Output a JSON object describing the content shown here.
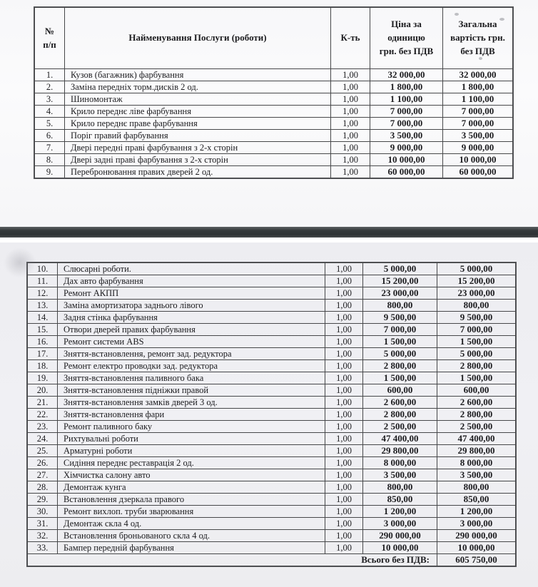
{
  "colors": {
    "page_top_bg": "#f9f9fb",
    "page_bottom_bg": "#efeff3",
    "divider": "#33383a",
    "table_border": "#47484a",
    "text": "#1c1c1f"
  },
  "header": {
    "col_num": "№\nп/п",
    "col_name": "Найменування Послуги (роботи)",
    "col_qty": "К-ть",
    "col_price": "Ціна за\nодиницю\nгрн. без ПДВ",
    "col_total": "Загальна\nвартість грн.\nбез ПДВ"
  },
  "table1": {
    "rows": [
      {
        "num": "1.",
        "name": "Кузов (багажник) фарбування",
        "qty": "1,00",
        "price": "32 000,00",
        "total": "32 000,00"
      },
      {
        "num": "2.",
        "name": "Заміна передніх торм.дисків 2 од.",
        "qty": "1,00",
        "price": "1 800,00",
        "total": "1 800,00"
      },
      {
        "num": "3.",
        "name": "Шиномонтаж",
        "qty": "1,00",
        "price": "1 100,00",
        "total": "1 100,00"
      },
      {
        "num": "4.",
        "name": "Крило переднє ліве фарбування",
        "qty": "1,00",
        "price": "7 000,00",
        "total": "7 000,00"
      },
      {
        "num": "5.",
        "name": "Крило переднє праве фарбування",
        "qty": "1,00",
        "price": "7 000,00",
        "total": "7 000,00"
      },
      {
        "num": "6.",
        "name": "Поріг правий фарбування",
        "qty": "1,00",
        "price": "3 500,00",
        "total": "3 500,00"
      },
      {
        "num": "7.",
        "name": "Двері передні праві фарбування з 2-х сторін",
        "qty": "1,00",
        "price": "9 000,00",
        "total": "9 000,00"
      },
      {
        "num": "8.",
        "name": "Двері задні праві фарбування з 2-х сторін",
        "qty": "1,00",
        "price": "10 000,00",
        "total": "10 000,00"
      },
      {
        "num": "9.",
        "name": "Перебронювання правих дверей 2 од.",
        "qty": "1,00",
        "price": "60 000,00",
        "total": "60 000,00"
      }
    ]
  },
  "table2": {
    "rows": [
      {
        "num": "10.",
        "name": "Слюсарні роботи.",
        "qty": "1,00",
        "price": "5 000,00",
        "total": "5 000,00"
      },
      {
        "num": "11.",
        "name": "Дах авто фарбування",
        "qty": "1,00",
        "price": "15 200,00",
        "total": "15 200,00"
      },
      {
        "num": "12.",
        "name": "Ремонт АКПП",
        "qty": "1,00",
        "price": "23 000,00",
        "total": "23 000,00"
      },
      {
        "num": "13.",
        "name": "Заміна амортизатора заднього лівого",
        "qty": "1,00",
        "price": "800,00",
        "total": "800,00"
      },
      {
        "num": "14.",
        "name": "Задня стінка фарбування",
        "qty": "1,00",
        "price": "9 500,00",
        "total": "9 500,00"
      },
      {
        "num": "15.",
        "name": "Отвори дверей правих фарбування",
        "qty": "1,00",
        "price": "7 000,00",
        "total": "7 000,00"
      },
      {
        "num": "16.",
        "name": "Ремонт системи ABS",
        "qty": "1,00",
        "price": "1 500,00",
        "total": "1 500,00"
      },
      {
        "num": "17.",
        "name": "Зняття-встановлення, ремонт зад. редуктора",
        "qty": "1,00",
        "price": "5 000,00",
        "total": "5 000,00"
      },
      {
        "num": "18.",
        "name": "Ремонт електро проводки зад. редуктора",
        "qty": "1,00",
        "price": "2 800,00",
        "total": "2 800,00"
      },
      {
        "num": "19.",
        "name": "Зняття-встановлення паливного бака",
        "qty": "1,00",
        "price": "1 500,00",
        "total": "1 500,00"
      },
      {
        "num": "20.",
        "name": "Зняття-встановлення підніжки правой",
        "qty": "1,00",
        "price": "600,00",
        "total": "600,00"
      },
      {
        "num": "21.",
        "name": "Зняття-встановлення замків дверей 3 од.",
        "qty": "1,00",
        "price": "2 600,00",
        "total": "2 600,00"
      },
      {
        "num": "22.",
        "name": "Зняття-встановлення фари",
        "qty": "1,00",
        "price": "2 800,00",
        "total": "2 800,00"
      },
      {
        "num": "23.",
        "name": "Ремонт паливного баку",
        "qty": "1,00",
        "price": "2 500,00",
        "total": "2 500,00"
      },
      {
        "num": "24.",
        "name": "Рихтувальні роботи",
        "qty": "1,00",
        "price": "47 400,00",
        "total": "47 400,00"
      },
      {
        "num": "25.",
        "name": "Арматурні роботи",
        "qty": "1,00",
        "price": "29 800,00",
        "total": "29 800,00"
      },
      {
        "num": "26.",
        "name": "Сидіння переднє реставрація 2 од.",
        "qty": "1,00",
        "price": "8 000,00",
        "total": "8 000,00"
      },
      {
        "num": "27.",
        "name": "Хімчистка салону авто",
        "qty": "1,00",
        "price": "3 500,00",
        "total": "3 500,00"
      },
      {
        "num": "28.",
        "name": "Демонтаж кунга",
        "qty": "1,00",
        "price": "800,00",
        "total": "800,00"
      },
      {
        "num": "29.",
        "name": "Встановлення дзеркала  правого",
        "qty": "1,00",
        "price": "850,00",
        "total": "850,00"
      },
      {
        "num": "30.",
        "name": "Ремонт вихлоп. труби зварювання",
        "qty": "1,00",
        "price": "1 200,00",
        "total": "1 200,00"
      },
      {
        "num": "31.",
        "name": "Демонтаж скла 4 од.",
        "qty": "1,00",
        "price": "3 000,00",
        "total": "3 000,00"
      },
      {
        "num": "32.",
        "name": "Встановлення броньованого скла  4 од.",
        "qty": "1,00",
        "price": "290 000,00",
        "total": "290 000,00"
      },
      {
        "num": "33.",
        "name": "Бампер передній фарбування",
        "qty": "1,00",
        "price": "10 000,00",
        "total": "10 000,00"
      }
    ],
    "total_label": "Всього без ПДВ:",
    "total_value": "605 750,00"
  }
}
